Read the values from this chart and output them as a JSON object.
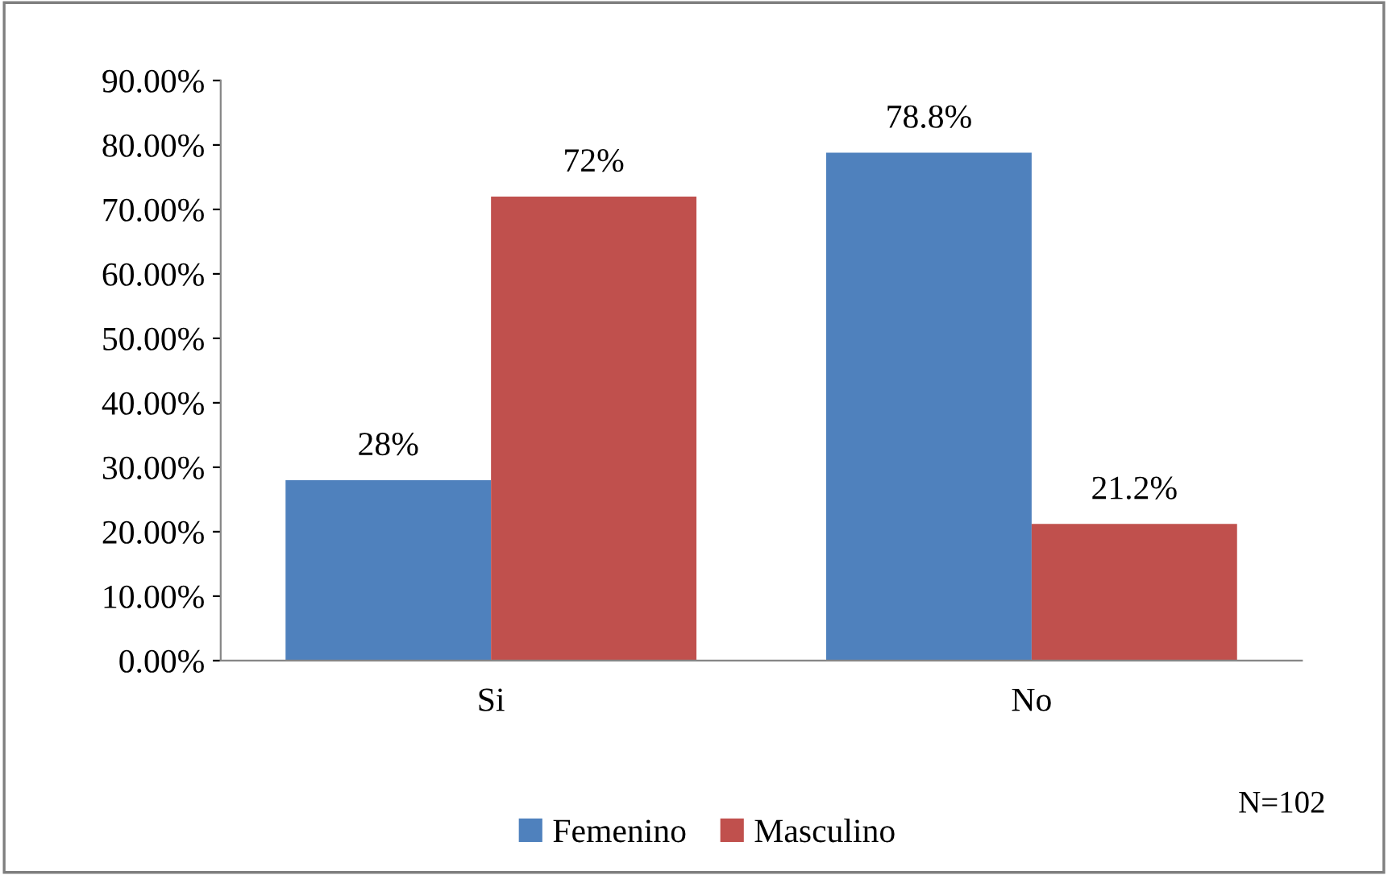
{
  "chart_data": {
    "type": "bar",
    "categories": [
      "Si",
      "No"
    ],
    "series": [
      {
        "name": "Femenino",
        "color": "#4f81bd",
        "values": [
          28,
          78.8
        ],
        "value_labels": [
          "28%",
          "78.8%"
        ]
      },
      {
        "name": "Masculino",
        "color": "#c0504d",
        "values": [
          72,
          21.2
        ],
        "value_labels": [
          "72%",
          "21.2%"
        ]
      }
    ],
    "ylim": [
      0,
      90
    ],
    "yticks": [
      {
        "value": 0,
        "label": "0.00%"
      },
      {
        "value": 10,
        "label": "10.00%"
      },
      {
        "value": 20,
        "label": "20.00%"
      },
      {
        "value": 30,
        "label": "30.00%"
      },
      {
        "value": 40,
        "label": "40.00%"
      },
      {
        "value": 50,
        "label": "50.00%"
      },
      {
        "value": 60,
        "label": "60.00%"
      },
      {
        "value": 70,
        "label": "70.00%"
      },
      {
        "value": 80,
        "label": "80.00%"
      },
      {
        "value": 90,
        "label": "90.00%"
      }
    ],
    "grid": false,
    "legend": "bottom",
    "annotations": [
      "N=102"
    ]
  }
}
